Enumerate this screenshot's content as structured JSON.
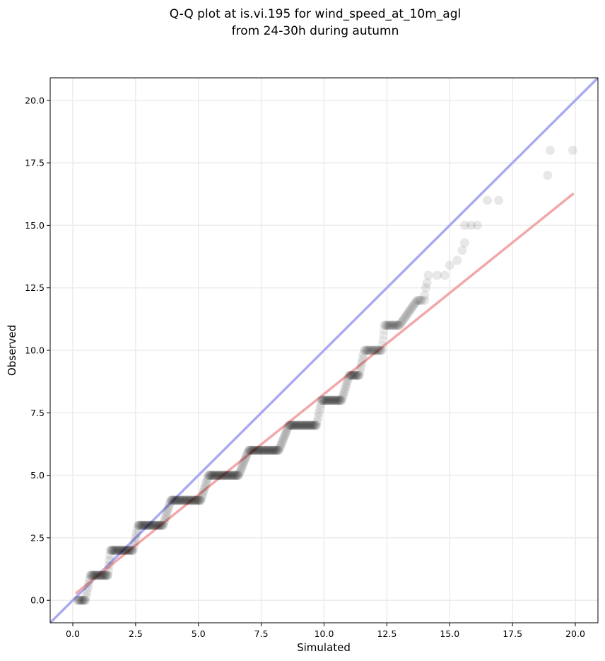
{
  "chart_data": {
    "type": "scatter",
    "title_lines": [
      "Q-Q plot at is.vi.195 for wind_speed_at_10m_agl",
      "from 24-30h during autumn"
    ],
    "xlabel": "Simulated",
    "ylabel": "Observed",
    "xlim": [
      -0.9,
      20.9
    ],
    "ylim": [
      -0.9,
      20.9
    ],
    "x_ticks": [
      0.0,
      2.5,
      5.0,
      7.5,
      10.0,
      12.5,
      15.0,
      17.5,
      20.0
    ],
    "y_ticks": [
      0.0,
      2.5,
      5.0,
      7.5,
      10.0,
      12.5,
      15.0,
      17.5,
      20.0
    ],
    "x_tick_labels": [
      "0.0",
      "2.5",
      "5.0",
      "7.5",
      "10.0",
      "12.5",
      "15.0",
      "17.5",
      "20.0"
    ],
    "y_tick_labels": [
      "0.0",
      "2.5",
      "5.0",
      "7.5",
      "10.0",
      "12.5",
      "15.0",
      "17.5",
      "20.0"
    ],
    "grid": true,
    "colors": {
      "points": "#000000",
      "identity_line": "#aaaaf2",
      "fit_line": "#f2a8a8",
      "grid": "#ececec"
    },
    "identity_line": {
      "x": [
        -0.9,
        20.9
      ],
      "y": [
        -0.9,
        20.9
      ]
    },
    "fit_line": {
      "x": [
        0.15,
        19.9
      ],
      "y": [
        0.3,
        16.25
      ]
    },
    "step_segments": [
      {
        "y": 0,
        "x_start": 0.2,
        "x_end": 0.5
      },
      {
        "y": 1,
        "x_start": 0.7,
        "x_end": 1.4
      },
      {
        "y": 2,
        "x_start": 1.5,
        "x_end": 2.4
      },
      {
        "y": 3,
        "x_start": 2.6,
        "x_end": 3.6
      },
      {
        "y": 4,
        "x_start": 3.9,
        "x_end": 5.1
      },
      {
        "y": 5,
        "x_start": 5.4,
        "x_end": 6.6
      },
      {
        "y": 6,
        "x_start": 7.0,
        "x_end": 8.2
      },
      {
        "y": 7,
        "x_start": 8.6,
        "x_end": 9.7
      },
      {
        "y": 8,
        "x_start": 9.9,
        "x_end": 10.7
      },
      {
        "y": 9,
        "x_start": 11.0,
        "x_end": 11.4
      },
      {
        "y": 10,
        "x_start": 11.6,
        "x_end": 12.3
      },
      {
        "y": 11,
        "x_start": 12.4,
        "x_end": 13.0
      },
      {
        "y": 12,
        "x_start": 13.7,
        "x_end": 13.9
      }
    ],
    "sparse_points": [
      [
        14.0,
        12.0
      ],
      [
        14.0,
        12.2
      ],
      [
        14.05,
        12.5
      ],
      [
        14.1,
        12.7
      ],
      [
        14.15,
        13.0
      ],
      [
        14.5,
        13.0
      ],
      [
        14.8,
        13.0
      ],
      [
        15.0,
        13.4
      ],
      [
        15.3,
        13.6
      ],
      [
        15.5,
        14.0
      ],
      [
        15.6,
        14.3
      ],
      [
        15.6,
        15.0
      ],
      [
        15.85,
        15.0
      ],
      [
        16.1,
        15.0
      ],
      [
        16.5,
        16.0
      ],
      [
        16.95,
        16.0
      ],
      [
        18.9,
        17.0
      ],
      [
        19.0,
        18.0
      ],
      [
        19.9,
        18.0
      ]
    ]
  }
}
